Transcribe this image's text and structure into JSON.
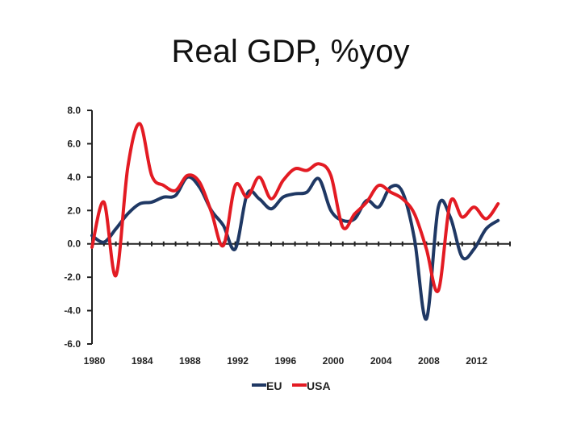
{
  "chart_data": {
    "type": "line",
    "title": "Real GDP, %yoy",
    "xlabel": "",
    "ylabel": "",
    "x": [
      1980,
      1981,
      1982,
      1983,
      1984,
      1985,
      1986,
      1987,
      1988,
      1989,
      1990,
      1991,
      1992,
      1993,
      1994,
      1995,
      1996,
      1997,
      1998,
      1999,
      2000,
      2001,
      2002,
      2003,
      2004,
      2005,
      2006,
      2007,
      2008,
      2009,
      2010,
      2011,
      2012,
      2013,
      2014
    ],
    "xlim": [
      1980,
      2015
    ],
    "ylim": [
      -6.0,
      8.0
    ],
    "x_ticks": [
      "1980",
      "1984",
      "1988",
      "1992",
      "1996",
      "2000",
      "2004",
      "2008",
      "2012"
    ],
    "x_tick_values": [
      1980,
      1984,
      1988,
      1992,
      1996,
      2000,
      2004,
      2008,
      2012
    ],
    "y_ticks": [
      "8.0",
      "6.0",
      "4.0",
      "2.0",
      "0.0",
      "-2.0",
      "-4.0",
      "-6.0"
    ],
    "y_tick_values": [
      8,
      6,
      4,
      2,
      0,
      -2,
      -4,
      -6
    ],
    "series": [
      {
        "name": "EU",
        "color": "#1f3864",
        "values": [
          0.5,
          0.1,
          0.9,
          1.8,
          2.4,
          2.5,
          2.8,
          2.9,
          4.0,
          3.4,
          2.0,
          1.1,
          -0.3,
          3.0,
          2.7,
          2.1,
          2.8,
          3.0,
          3.1,
          3.9,
          2.0,
          1.4,
          1.5,
          2.6,
          2.2,
          3.4,
          3.1,
          0.3,
          -4.5,
          2.2,
          1.6,
          -0.8,
          -0.3,
          0.9,
          1.4
        ]
      },
      {
        "name": "USA",
        "color": "#e31b23",
        "values": [
          -0.2,
          2.5,
          -1.9,
          4.6,
          7.2,
          4.1,
          3.5,
          3.2,
          4.1,
          3.7,
          1.9,
          -0.1,
          3.5,
          2.8,
          4.0,
          2.7,
          3.8,
          4.5,
          4.4,
          4.8,
          4.1,
          1.0,
          1.8,
          2.5,
          3.5,
          3.1,
          2.7,
          1.8,
          -0.3,
          -2.8,
          2.5,
          1.6,
          2.2,
          1.5,
          2.4
        ]
      }
    ],
    "legend_position": "bottom"
  }
}
